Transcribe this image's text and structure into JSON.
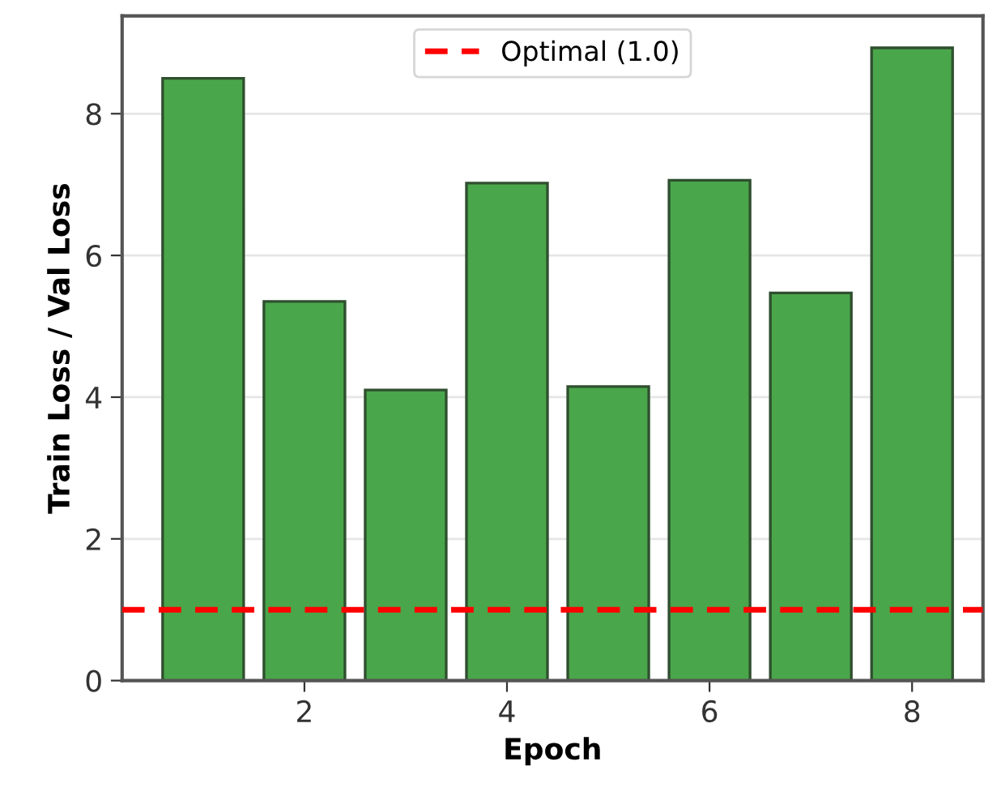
{
  "chart_data": {
    "type": "bar",
    "xlabel": "Epoch",
    "ylabel": "Train Loss / Val Loss",
    "x": [
      1,
      2,
      3,
      4,
      5,
      6,
      7,
      8
    ],
    "values": [
      8.5,
      5.35,
      4.1,
      7.02,
      4.15,
      7.06,
      5.47,
      8.93
    ],
    "color": "#4aa64a",
    "xlim": [
      0.2,
      8.7
    ],
    "xticks": [
      2,
      4,
      6,
      8
    ],
    "ylim": [
      0,
      9.38
    ],
    "yticks": [
      0,
      2,
      4,
      6,
      8
    ],
    "ref_lines": [
      {
        "axis": "y",
        "value": 1.0,
        "label": "Optimal (1.0)",
        "color": "#ff0000",
        "line_style": "dashed"
      }
    ],
    "grid": "y",
    "legend": "top"
  }
}
